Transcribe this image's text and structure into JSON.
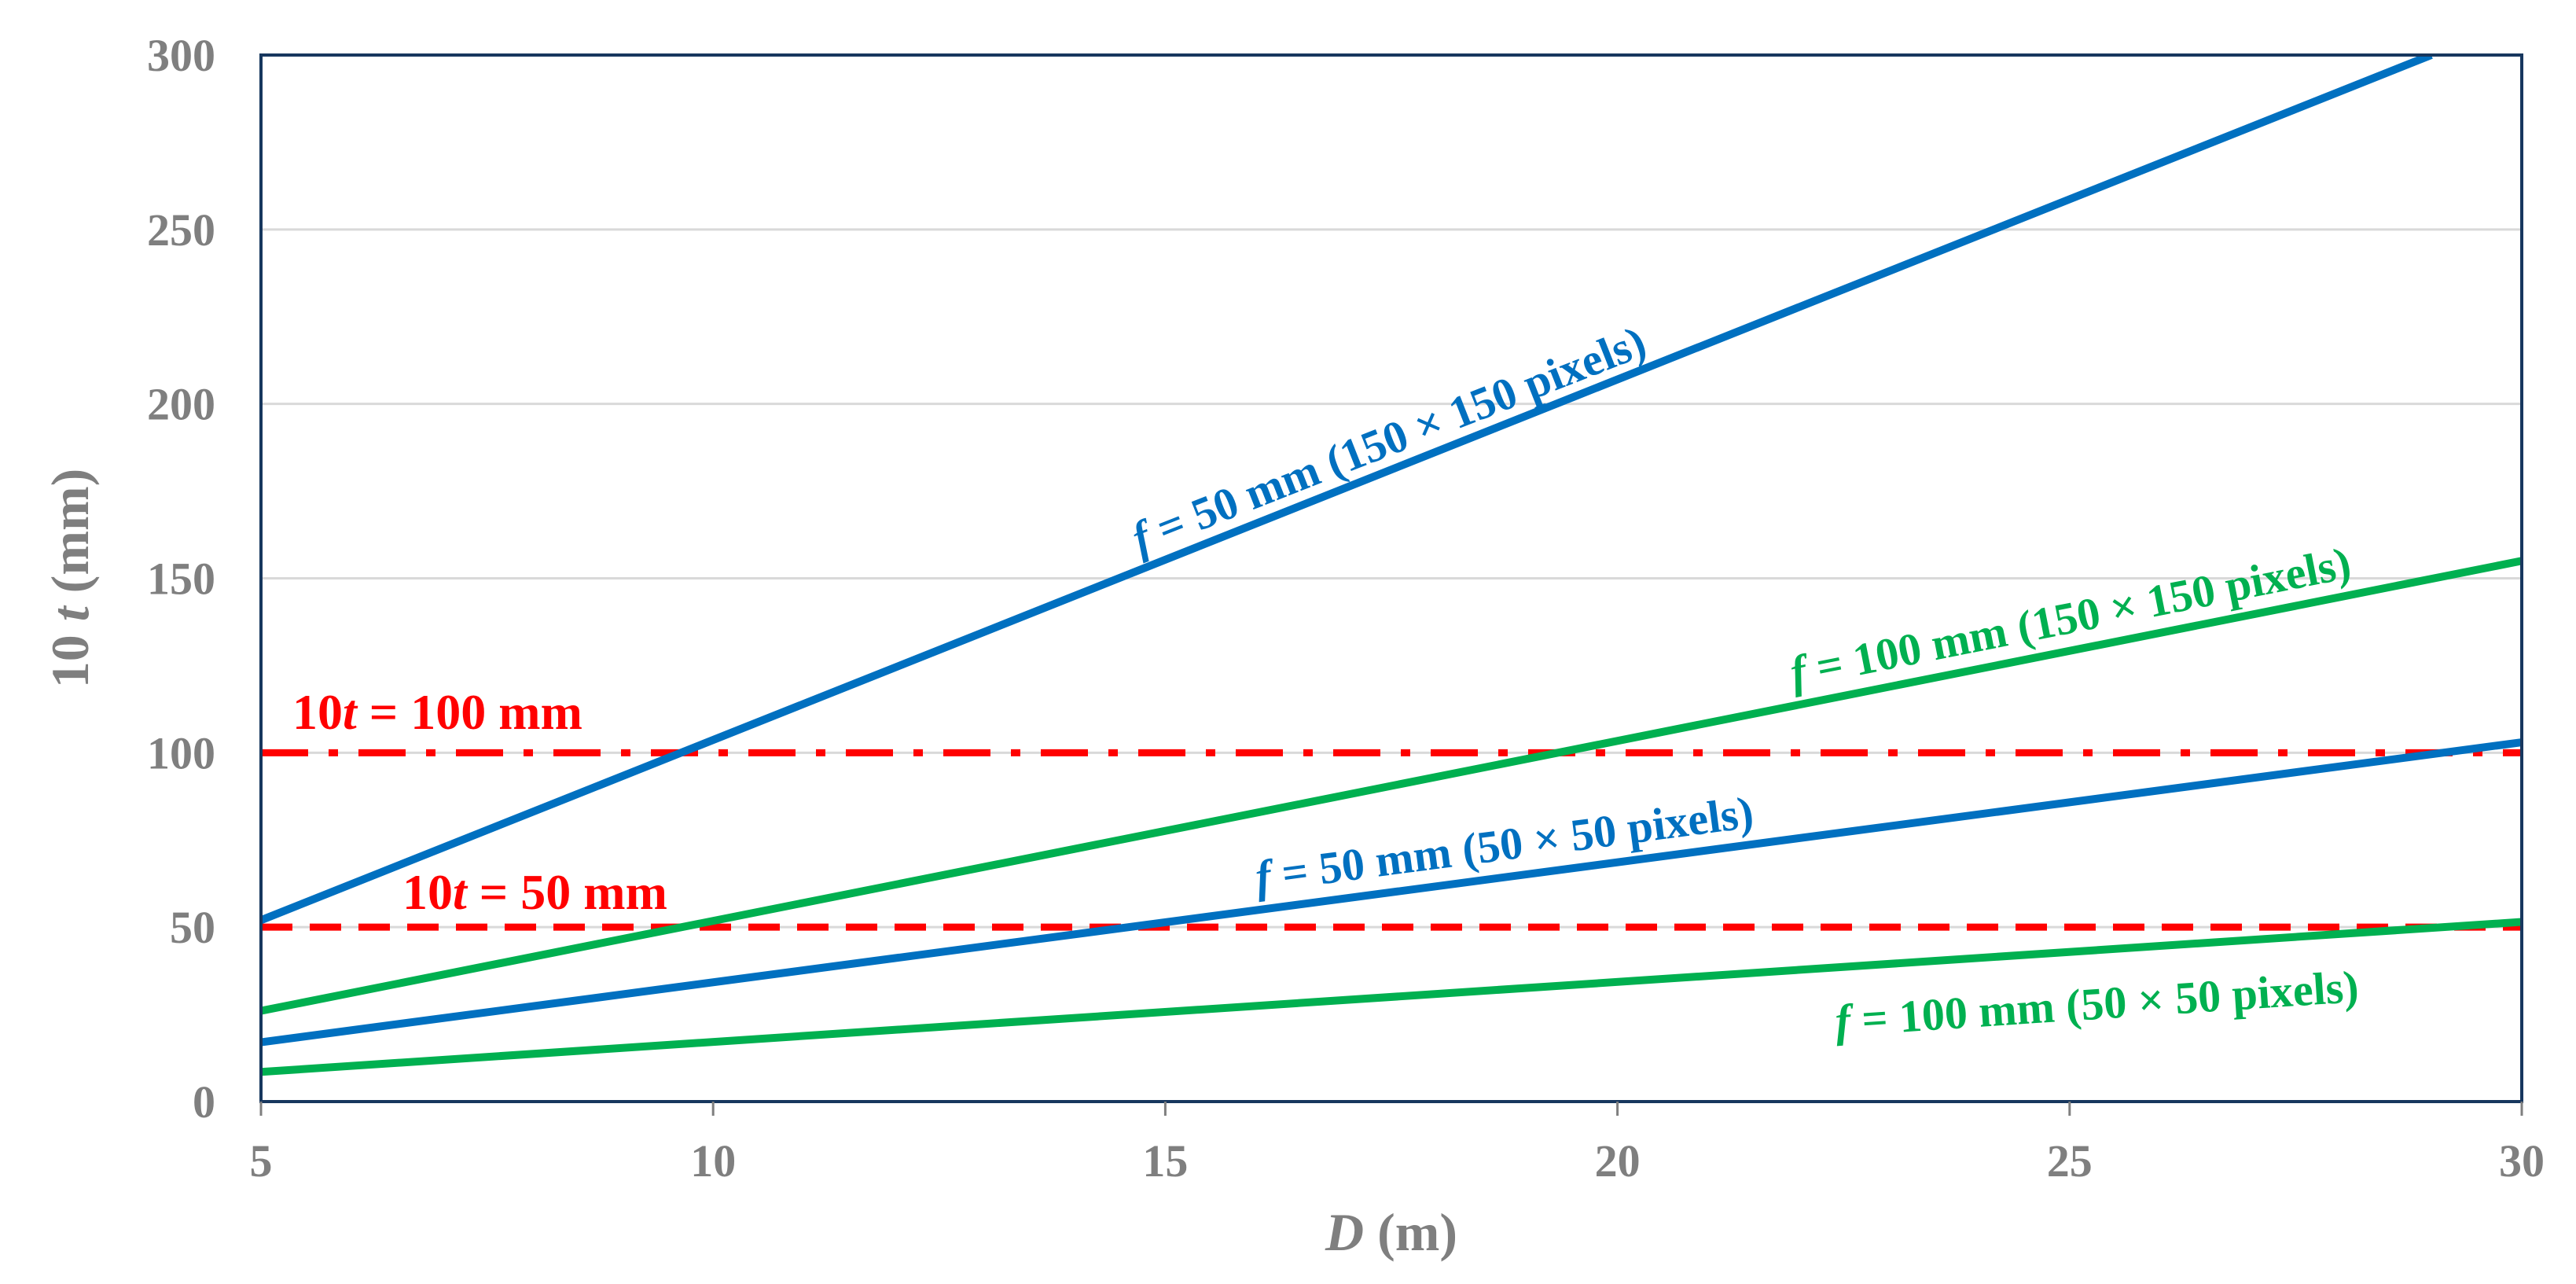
{
  "chart_data": {
    "type": "line",
    "title": "",
    "xlabel": {
      "var": "D",
      "unit": " (m)"
    },
    "ylabel": {
      "prefix": "10 ",
      "var": "t",
      "unit": " (mm)"
    },
    "xlim": [
      5,
      30
    ],
    "ylim": [
      0,
      300
    ],
    "xticks": [
      "5",
      "10",
      "15",
      "20",
      "25",
      "30"
    ],
    "yticks": [
      "0",
      "50",
      "100",
      "150",
      "200",
      "250",
      "300"
    ],
    "grid": "horizontal",
    "series": [
      {
        "name": "f = 50 mm (150 × 150 pixels)",
        "label": {
          "var": "f",
          "rest": " = 50 mm (150 × 150 pixels)"
        },
        "color": "#0070c0",
        "x": [
          5,
          29
        ],
        "y": [
          52,
          300
        ]
      },
      {
        "name": "f = 100 mm (150 × 150 pixels)",
        "label": {
          "var": "f",
          "rest": " = 100 mm (150 × 150 pixels)"
        },
        "color": "#00b050",
        "x": [
          5,
          30
        ],
        "y": [
          26,
          155
        ]
      },
      {
        "name": "f = 50 mm (50 × 50 pixels)",
        "label": {
          "var": "f",
          "rest": " = 50 mm (50 × 50 pixels)"
        },
        "color": "#0070c0",
        "x": [
          5,
          30
        ],
        "y": [
          17,
          103
        ]
      },
      {
        "name": "f = 100 mm (50 × 50 pixels)",
        "label": {
          "var": "f",
          "rest": " = 100 mm (50 × 50 pixels)"
        },
        "color": "#00b050",
        "x": [
          5,
          30
        ],
        "y": [
          8.5,
          51.5
        ]
      }
    ],
    "reference_lines": [
      {
        "name": "10t = 100 mm",
        "label": {
          "pre": "10",
          "var": "t",
          "rest": " = 100 mm"
        },
        "y": 100,
        "style": "dash-dot",
        "color": "#ff0000"
      },
      {
        "name": "10t = 50 mm",
        "label": {
          "pre": "10",
          "var": "t",
          "rest": " = 50 mm"
        },
        "y": 50,
        "style": "dashed",
        "color": "#ff0000"
      }
    ]
  }
}
